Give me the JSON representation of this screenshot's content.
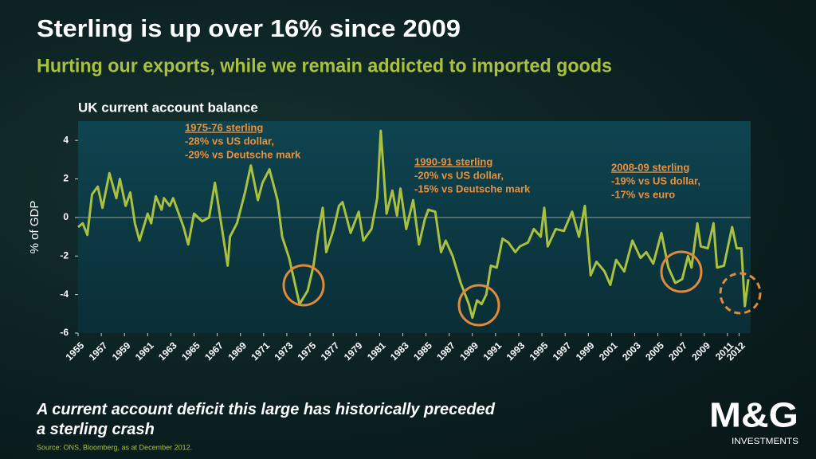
{
  "title": "Sterling is up over 16% since 2009",
  "subtitle": "Hurting our exports, while we remain addicted to imported goods",
  "note": "A current account deficit this large has historically preceded a sterling crash",
  "source": "Source: ONS, Bloomberg, as at December 2012.",
  "logo": {
    "brand": "M&G",
    "tagline": "INVESTMENTS"
  },
  "chart_data": {
    "type": "line",
    "title": "UK current account balance",
    "ylabel": "% of GDP",
    "color": "#a9c13f",
    "x": [
      1955.0,
      1955.4,
      1955.8,
      1956.2,
      1956.7,
      1957.1,
      1957.7,
      1958.3,
      1958.6,
      1959.1,
      1959.5,
      1959.9,
      1960.3,
      1961.0,
      1961.3,
      1961.7,
      1962.2,
      1962.4,
      1962.9,
      1963.2,
      1964.1,
      1964.5,
      1965.0,
      1965.7,
      1966.3,
      1966.8,
      1967.9,
      1968.1,
      1968.7,
      1969.4,
      1969.9,
      1970.5,
      1970.9,
      1971.5,
      1972.2,
      1972.6,
      1973.2,
      1974.1,
      1974.8,
      1975.3,
      1975.7,
      1976.1,
      1976.4,
      1977.0,
      1977.5,
      1977.8,
      1978.5,
      1979.2,
      1979.6,
      1980.3,
      1980.8,
      1981.1,
      1981.6,
      1982.1,
      1982.5,
      1982.8,
      1983.3,
      1983.9,
      1984.4,
      1984.9,
      1985.2,
      1985.8,
      1986.3,
      1986.7,
      1987.3,
      1988.0,
      1988.7,
      1989.0,
      1989.4,
      1989.8,
      1990.2,
      1990.6,
      1991.1,
      1991.6,
      1992.1,
      1992.7,
      1993.1,
      1993.8,
      1994.3,
      1994.9,
      1995.2,
      1995.5,
      1996.2,
      1996.9,
      1997.6,
      1998.2,
      1998.7,
      1999.2,
      1999.7,
      2000.4,
      2000.9,
      2001.4,
      2002.1,
      2002.8,
      2003.5,
      2004.0,
      2004.6,
      2005.3,
      2005.9,
      2006.5,
      2007.1,
      2007.6,
      2007.9,
      2008.4,
      2008.7,
      2009.3,
      2009.8,
      2010.1,
      2010.7,
      2011.4,
      2011.8,
      2012.2,
      2012.5,
      2012.8
    ],
    "values": [
      -0.5,
      -0.3,
      -0.9,
      1.2,
      1.6,
      0.5,
      2.3,
      1.0,
      2.0,
      0.6,
      1.3,
      -0.3,
      -1.2,
      0.2,
      -0.3,
      1.1,
      0.4,
      1.0,
      0.6,
      1.0,
      -0.5,
      -1.4,
      0.2,
      -0.2,
      0.0,
      1.8,
      -2.5,
      -1.0,
      -0.3,
      1.3,
      2.7,
      0.9,
      1.8,
      2.5,
      0.9,
      -1.0,
      -2.1,
      -4.5,
      -3.8,
      -2.5,
      -0.8,
      0.5,
      -1.8,
      -0.7,
      0.6,
      0.8,
      -0.8,
      0.3,
      -1.2,
      -0.6,
      1.0,
      4.5,
      0.2,
      1.4,
      0.1,
      1.5,
      -0.6,
      0.9,
      -1.4,
      -0.1,
      0.4,
      0.3,
      -1.8,
      -1.2,
      -2.0,
      -3.4,
      -4.5,
      -5.2,
      -4.3,
      -4.5,
      -4.0,
      -2.5,
      -2.6,
      -1.1,
      -1.3,
      -1.8,
      -1.5,
      -1.3,
      -0.6,
      -1.0,
      0.5,
      -1.5,
      -0.6,
      -0.7,
      0.3,
      -1.0,
      0.6,
      -3.0,
      -2.3,
      -2.8,
      -3.5,
      -2.2,
      -2.8,
      -1.2,
      -2.1,
      -1.8,
      -2.4,
      -0.8,
      -2.6,
      -3.4,
      -3.2,
      -2.0,
      -2.6,
      -0.3,
      -1.5,
      -1.6,
      -0.3,
      -2.6,
      -2.5,
      -0.5,
      -1.6,
      -1.6,
      -4.6,
      -3.2
    ],
    "xlim": [
      1955,
      2013
    ],
    "xticks": [
      1955,
      1957,
      1959,
      1961,
      1963,
      1965,
      1967,
      1969,
      1971,
      1973,
      1975,
      1977,
      1979,
      1981,
      1983,
      1985,
      1987,
      1989,
      1991,
      1993,
      1995,
      1997,
      1999,
      2001,
      2003,
      2005,
      2007,
      2009,
      2011,
      2012
    ],
    "ylim": [
      -6,
      5
    ],
    "yticks": [
      -6,
      -4,
      -2,
      0,
      2,
      4
    ],
    "annotations": [
      {
        "title": "1975-76 sterling",
        "lines": [
          "-28% vs US dollar,",
          "-29% vs Deutsche mark"
        ]
      },
      {
        "title": "1990-91 sterling",
        "lines": [
          "-20% vs US dollar,",
          "-15% vs Deutsche mark"
        ]
      },
      {
        "title": "2008-09 sterling",
        "lines": [
          "-19% vs US dollar,",
          "-17% vs euro"
        ]
      }
    ]
  }
}
